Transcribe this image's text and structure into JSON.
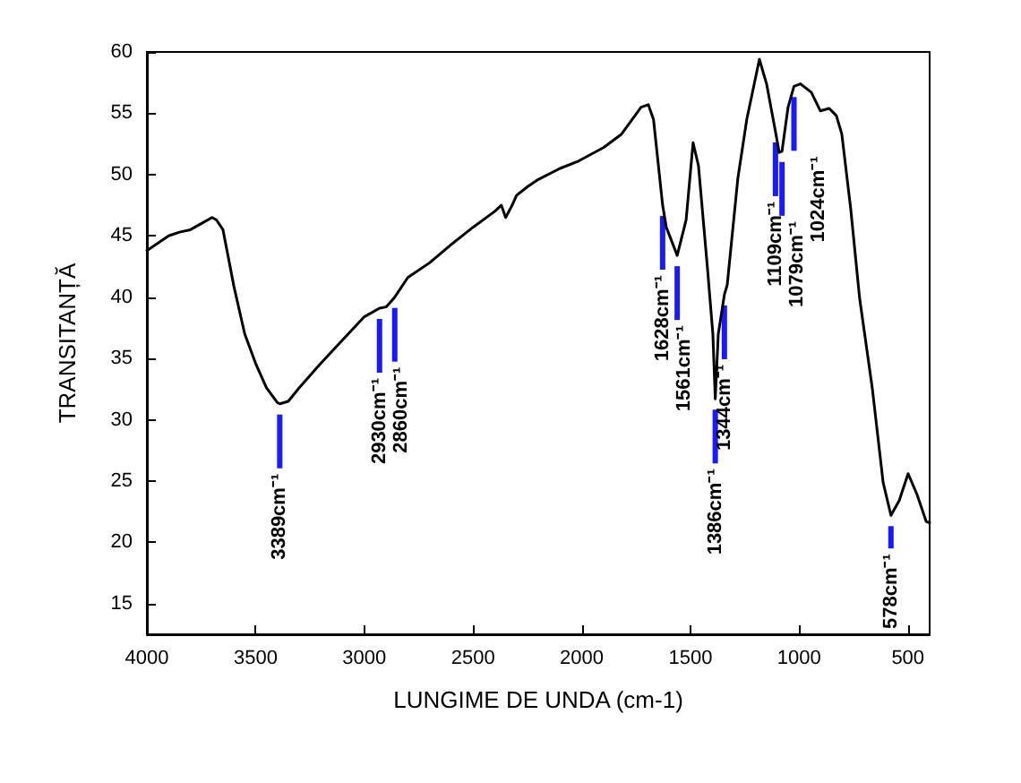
{
  "chart_data": {
    "type": "line",
    "xlabel": "LUNGIME DE UNDA (cm-1)",
    "ylabel": "TRANSITANȚĂ",
    "xlim": [
      4000,
      400
    ],
    "xticks": [
      4000,
      3500,
      3000,
      2500,
      2000,
      1500,
      1000,
      500
    ],
    "ylim": [
      12.5,
      60
    ],
    "yticks": [
      15,
      20,
      25,
      30,
      35,
      40,
      45,
      50,
      55,
      60
    ],
    "grid": false,
    "marker": "none",
    "line_style": "solid",
    "x": [
      4000,
      3900,
      3850,
      3800,
      3750,
      3700,
      3680,
      3650,
      3600,
      3550,
      3500,
      3450,
      3400,
      3389,
      3350,
      3300,
      3200,
      3100,
      3000,
      2930,
      2900,
      2860,
      2800,
      2700,
      2600,
      2500,
      2400,
      2370,
      2350,
      2320,
      2300,
      2250,
      2200,
      2100,
      2015,
      1900,
      1817,
      1727,
      1694,
      1670,
      1628,
      1611,
      1561,
      1520,
      1488,
      1463,
      1422,
      1397,
      1386,
      1372,
      1344,
      1331,
      1282,
      1241,
      1183,
      1150,
      1109,
      1092,
      1079,
      1051,
      1024,
      994,
      944,
      903,
      862,
      829,
      804,
      763,
      722,
      664,
      614,
      578,
      540,
      499,
      458,
      416,
      400
    ],
    "series": [
      {
        "color": "#000000",
        "values": [
          43.8,
          45,
          45.3,
          45.5,
          46,
          46.5,
          46.3,
          45.5,
          40.9,
          37,
          34.6,
          32.6,
          31.4,
          31.3,
          31.5,
          32.6,
          34.6,
          36.5,
          38.4,
          39.1,
          39.2,
          40,
          41.6,
          42.8,
          44.3,
          45.7,
          47,
          47.5,
          46.5,
          47.5,
          48.3,
          49,
          49.6,
          50.5,
          51.1,
          52.2,
          53.3,
          55.5,
          55.7,
          54.5,
          47.5,
          45.7,
          43.4,
          46.3,
          52.6,
          50.7,
          42.4,
          37,
          31.7,
          37,
          40.2,
          41,
          49.7,
          54.5,
          59.4,
          57.4,
          53.5,
          51.8,
          51.9,
          55.5,
          57.2,
          57.4,
          56.7,
          55.2,
          55.4,
          54.8,
          53.3,
          47.2,
          39.9,
          32.6,
          24.9,
          22.2,
          23.4,
          25.6,
          23.9,
          21.7,
          21.6
        ]
      }
    ],
    "annotations": [
      {
        "text": "3389cm⁻¹",
        "x": 3389,
        "y": 31.3
      },
      {
        "text": "2930cm⁻¹",
        "x": 2930,
        "y": 39.1
      },
      {
        "text": "2860cm⁻¹",
        "x": 2860,
        "y": 40
      },
      {
        "text": "1628cm⁻¹",
        "x": 1628,
        "y": 47.5
      },
      {
        "text": "1561cm⁻¹",
        "x": 1561,
        "y": 43.4
      },
      {
        "text": "1386cm⁻¹",
        "x": 1386,
        "y": 31.7
      },
      {
        "text": "1344cm⁻¹",
        "x": 1344,
        "y": 40.2
      },
      {
        "text": "1109cm⁻¹",
        "x": 1109,
        "y": 53.5
      },
      {
        "text": "1079cm⁻¹",
        "x": 1079,
        "y": 51.9
      },
      {
        "text": "1024cm⁻¹",
        "x": 1024,
        "y": 57.2
      },
      {
        "text": "578cm⁻¹",
        "x": 578,
        "y": 22.2
      }
    ]
  }
}
